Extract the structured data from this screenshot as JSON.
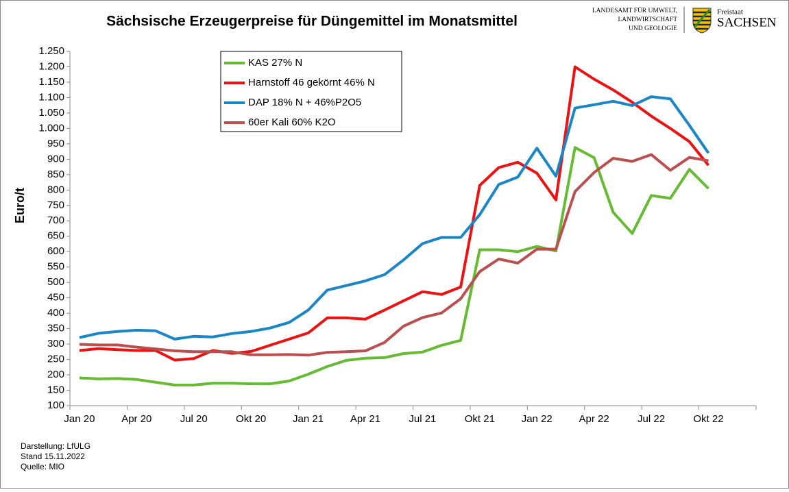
{
  "chart_data": {
    "type": "line",
    "title": "Sächsische Erzeugerpreise für Düngemittel im Monatsmittel",
    "ylabel": "Euro/t",
    "categories": [
      "Jan 20",
      null,
      null,
      "Apr 20",
      null,
      null,
      "Jul 20",
      null,
      null,
      "Okt 20",
      null,
      null,
      "Jan 21",
      null,
      null,
      "Apr 21",
      null,
      null,
      "Jul 21",
      null,
      null,
      "Okt 21",
      null,
      null,
      "Jan 22",
      null,
      null,
      "Apr 22",
      null,
      null,
      "Jul 22",
      null,
      null,
      "Okt 22",
      null,
      null
    ],
    "series": [
      {
        "name": "KAS 27% N",
        "color": "#66bb33",
        "values": [
          190,
          187,
          188,
          185,
          176,
          167,
          167,
          173,
          173,
          171,
          171,
          180,
          202,
          227,
          247,
          254,
          256,
          269,
          274,
          296,
          312,
          606,
          606,
          600,
          617,
          602,
          938,
          905,
          728,
          659,
          782,
          773,
          867,
          805,
          null,
          null
        ]
      },
      {
        "name": "Harnstoff 46 gekörnt 46% N",
        "color": "#ee1111",
        "values": [
          279,
          285,
          282,
          279,
          279,
          248,
          253,
          279,
          270,
          276,
          296,
          316,
          336,
          385,
          385,
          381,
          410,
          440,
          470,
          461,
          485,
          815,
          873,
          890,
          855,
          768,
          1200,
          1160,
          1125,
          1085,
          1040,
          1000,
          957,
          880,
          null,
          null
        ]
      },
      {
        "name": "DAP 18% N + 46%P2O5",
        "color": "#1a86c8",
        "values": [
          321,
          335,
          341,
          345,
          343,
          316,
          325,
          323,
          334,
          341,
          352,
          370,
          410,
          475,
          490,
          505,
          525,
          573,
          626,
          646,
          646,
          720,
          818,
          842,
          936,
          845,
          1066,
          1077,
          1088,
          1074,
          1103,
          1096,
          1010,
          920,
          null,
          null
        ]
      },
      {
        "name": "60er Kali 60% K2O",
        "color": "#bb4f4f",
        "values": [
          299,
          297,
          297,
          290,
          284,
          278,
          275,
          275,
          275,
          265,
          265,
          266,
          264,
          273,
          275,
          278,
          305,
          358,
          386,
          401,
          447,
          535,
          576,
          563,
          608,
          608,
          795,
          857,
          903,
          893,
          915,
          864,
          906,
          895,
          null,
          null
        ]
      }
    ],
    "ylim": [
      100,
      1250
    ],
    "yticks": [
      100,
      150,
      200,
      250,
      300,
      350,
      400,
      450,
      500,
      550,
      600,
      650,
      700,
      750,
      800,
      850,
      900,
      950,
      {
        "value": 1000,
        "label": "1.000"
      },
      {
        "value": 1050,
        "label": "1.050"
      },
      {
        "value": 1100,
        "label": "1.100"
      },
      {
        "value": 1150,
        "label": "1.150"
      },
      {
        "value": 1200,
        "label": "1.200"
      },
      {
        "value": 1250,
        "label": "1.250"
      }
    ],
    "grid": false,
    "legend": "top-left",
    "notes": [
      "Darstellung: LfULG",
      "Stand 15.11.2022",
      "Quelle: MIO"
    ]
  },
  "logo": {
    "agency": [
      "LANDESAMT FÜR UMWELT,",
      "LANDWIRTSCHAFT",
      "UND GEOLOGIE"
    ],
    "state_small": "Freistaat",
    "state": "SACHSEN"
  }
}
